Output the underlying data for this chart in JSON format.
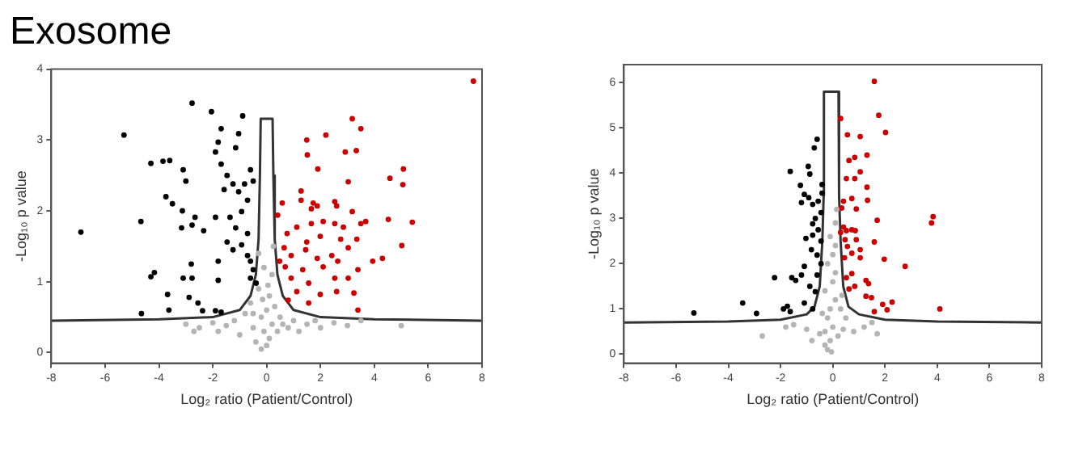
{
  "chart_data": [
    {
      "type": "scatter",
      "title": "Exosome",
      "xlabel": "Log₂ ratio (Patient/Control)",
      "ylabel": "-Log₁₀ p value",
      "xlim": [
        -8,
        8
      ],
      "xticks": [
        -8,
        -6,
        -4,
        -2,
        0,
        2,
        4,
        6,
        8
      ],
      "ylim": [
        -0.15,
        4
      ],
      "yticks": [
        0,
        1,
        2,
        3,
        4
      ],
      "grid": false,
      "legend": false,
      "marker": "circle",
      "series": [
        {
          "type": "scatter",
          "color": "#b4b4b4",
          "x": [
            -3,
            -2.5,
            -2,
            -1.8,
            -1.5,
            -1.2,
            -1,
            -0.8,
            -0.6,
            -0.5,
            -0.4,
            -0.3,
            -0.2,
            -0.2,
            -0.1,
            -0.1,
            0,
            0,
            0.1,
            0.1,
            0.2,
            0.2,
            0.3,
            0.4,
            0.5,
            0.6,
            0.8,
            1,
            1.2,
            1.5,
            2,
            2.5,
            3,
            3.5,
            5,
            -0.3,
            0.25,
            -0.15,
            0.05,
            -0.5,
            -2.7,
            1.8
          ],
          "values": [
            0.4,
            0.35,
            0.42,
            0.3,
            0.38,
            0.45,
            0.25,
            0.55,
            0.7,
            0.35,
            0.15,
            0.9,
            0.5,
            0.05,
            1.2,
            0.3,
            0.6,
            0.1,
            0.8,
            0.2,
            1.1,
            0.4,
            0.65,
            0.3,
            0.5,
            0.4,
            0.35,
            0.45,
            0.3,
            0.4,
            0.35,
            0.42,
            0.38,
            0.45,
            0.38,
            1.4,
            1.5,
            0.75,
            0.95,
            0.55,
            0.3,
            0.45
          ]
        },
        {
          "type": "scatter",
          "color": "#000000",
          "x": [
            -2.77,
            -5.3,
            -2.05,
            -6.9,
            -4.67,
            -4.65,
            -4.3,
            -3.85,
            -3.6,
            -3.74,
            -3.5,
            -3.1,
            -3.0,
            -3.13,
            -3.16,
            -2.77,
            -2.66,
            -2.34,
            -4.17,
            -4.3,
            -3.1,
            -3.68,
            -3.63,
            -2.8,
            -2.77,
            -2.88,
            -2.55,
            -2.38,
            -1.9,
            -1.69,
            -1.8,
            -1.8,
            -1.9,
            -1.9,
            -1.8,
            -1.69,
            -0.89,
            -1.15,
            -1.04,
            -1.58,
            -1.47,
            -1.25,
            -1.04,
            -0.82,
            -0.6,
            -0.5,
            -1.36,
            -1.15,
            -0.93,
            -0.71,
            -1.47,
            -1.25,
            -0.93,
            -0.71,
            -0.6,
            -0.5,
            -0.39,
            -0.6,
            -1.69,
            -0.71
          ],
          "values": [
            3.52,
            3.07,
            3.4,
            1.7,
            1.85,
            0.55,
            2.67,
            2.7,
            2.71,
            2.2,
            2.1,
            2.58,
            2.42,
            2.0,
            1.76,
            1.8,
            1.91,
            1.72,
            1.13,
            1.07,
            1.05,
            0.82,
            0.6,
            1.25,
            1.05,
            0.78,
            0.7,
            0.59,
            0.59,
            0.57,
            1.29,
            1.02,
            1.91,
            2.83,
            2.97,
            3.16,
            3.34,
            2.89,
            3.09,
            2.3,
            2.5,
            2.38,
            2.27,
            2.38,
            2.58,
            2.42,
            1.91,
            1.76,
            1.99,
            1.68,
            1.56,
            1.45,
            1.52,
            1.37,
            1.29,
            1.17,
            0.98,
            1.05,
            2.66,
            2.15
          ]
        },
        {
          "type": "scatter",
          "color": "#cc0000",
          "x": [
            7.68,
            3.18,
            3.5,
            1.49,
            2.2,
            1.51,
            2.92,
            3.33,
            1.9,
            3.03,
            4.58,
            5.08,
            5.06,
            1.28,
            1.28,
            1.73,
            1.88,
            1.66,
            2.53,
            2.6,
            3.18,
            0.58,
            0.41,
            1.12,
            1.66,
            2.1,
            2.53,
            2.85,
            3.5,
            3.68,
            4.52,
            5.41,
            0.76,
            1.49,
            1.99,
            2.75,
            3.35,
            0.65,
            0.91,
            1.45,
            1.88,
            2.42,
            3.03,
            5.02,
            0.48,
            0.69,
            1.34,
            2.1,
            2.64,
            3.94,
            4.3,
            3.39,
            0.91,
            1.56,
            2.53,
            3.03,
            1.12,
            1.99,
            2.6,
            3.24,
            0.8,
            1.56,
            3.39
          ],
          "values": [
            3.83,
            3.3,
            3.16,
            3.0,
            3.07,
            2.79,
            2.83,
            2.85,
            2.59,
            2.41,
            2.46,
            2.59,
            2.37,
            2.28,
            2.15,
            2.11,
            2.07,
            2.03,
            2.13,
            2.07,
            1.99,
            2.11,
            1.94,
            1.77,
            1.82,
            1.85,
            1.82,
            1.77,
            1.82,
            1.85,
            1.88,
            1.84,
            1.68,
            1.56,
            1.64,
            1.6,
            1.6,
            1.48,
            1.37,
            1.45,
            1.33,
            1.37,
            1.48,
            1.51,
            1.29,
            1.21,
            1.17,
            1.21,
            1.29,
            1.29,
            1.33,
            1.17,
            1.05,
            0.98,
            1.05,
            1.05,
            0.86,
            0.82,
            0.86,
            0.84,
            0.74,
            0.7,
            0.6
          ]
        },
        {
          "type": "line",
          "marker": "none",
          "color": "#333333",
          "x": [
            -8,
            -4,
            -2,
            -1,
            -0.6,
            -0.4,
            -0.3,
            -0.25,
            -0.22,
            0.22,
            0.25,
            0.3,
            0.4,
            0.6,
            1,
            2,
            4,
            8
          ],
          "values": [
            0.45,
            0.47,
            0.5,
            0.6,
            0.8,
            1.1,
            1.6,
            2.5,
            3.3,
            3.3,
            2.5,
            1.6,
            1.1,
            0.8,
            0.6,
            0.5,
            0.47,
            0.45
          ]
        }
      ]
    },
    {
      "type": "scatter",
      "xlabel": "Log₂ ratio (Patient/Control)",
      "ylabel": "-Log₁₀ p value",
      "xlim": [
        -8,
        8
      ],
      "xticks": [
        -8,
        -6,
        -4,
        -2,
        0,
        2,
        4,
        6,
        8
      ],
      "ylim": [
        -0.2,
        6.4
      ],
      "yticks": [
        0,
        1,
        2,
        3,
        4,
        5,
        6
      ],
      "grid": false,
      "legend": false,
      "marker": "circle",
      "series": [
        {
          "type": "scatter",
          "color": "#b4b4b4",
          "x": [
            -0.2,
            -0.1,
            -0.3,
            0,
            -0.2,
            -0.1,
            0.1,
            -0.3,
            0,
            0.1,
            -0.2,
            0,
            0.1,
            -0.1,
            0.1,
            0.15,
            -0.3,
            0.2,
            -0.5,
            0.4,
            -1,
            0.8,
            -1.5,
            1.2,
            -2.7,
            -1.8,
            1.5,
            1.7,
            -0.8,
            0.5,
            0.3,
            0.35,
            -0.4,
            -0.05
          ],
          "values": [
            0.1,
            0.3,
            0.5,
            0.6,
            0.8,
            1.0,
            1.2,
            1.4,
            1.6,
            1.8,
            2.0,
            2.2,
            2.4,
            2.6,
            2.9,
            3.2,
            0.2,
            0.4,
            0.45,
            0.55,
            0.55,
            0.5,
            0.65,
            0.6,
            0.4,
            0.6,
            0.7,
            0.45,
            0.3,
            0.8,
            1.0,
            1.3,
            0.9,
            0.05
          ]
        },
        {
          "type": "scatter",
          "color": "#000000",
          "x": [
            -5.32,
            -3.45,
            -2.92,
            -2.23,
            -1.89,
            -1.74,
            -1.63,
            -1.57,
            -1.42,
            -1.63,
            -1.24,
            -0.94,
            -0.6,
            -0.71,
            -0.88,
            -1.2,
            -1.09,
            -0.92,
            -0.77,
            -0.56,
            -0.45,
            -0.67,
            -0.77,
            -1.03,
            -0.77,
            -0.56,
            -0.45,
            -0.82,
            -0.6,
            -0.45,
            -1.09,
            -1.2,
            -0.88,
            -0.67,
            -0.6,
            -1.09,
            -0.77,
            -0.41,
            -0.41
          ],
          "values": [
            0.91,
            1.13,
            0.9,
            1.69,
            1.0,
            1.06,
            0.94,
            1.69,
            1.63,
            4.04,
            3.73,
            4.15,
            4.75,
            4.56,
            3.98,
            3.35,
            3.53,
            3.46,
            3.31,
            3.38,
            3.13,
            3.0,
            2.88,
            2.56,
            2.63,
            2.75,
            2.5,
            2.31,
            2.19,
            2.0,
            1.94,
            1.75,
            1.5,
            1.38,
            1.75,
            1.13,
            1.0,
            3.75,
            3.56
          ]
        },
        {
          "type": "scatter",
          "color": "#cc0000",
          "x": [
            1.59,
            1.76,
            2.02,
            0.3,
            0.56,
            1.05,
            1.31,
            0.84,
            0.62,
            1.05,
            0.52,
            0.84,
            1.31,
            0.73,
            1.33,
            0.41,
            0.34,
            0.9,
            1.7,
            3.84,
            3.78,
            0.41,
            0.52,
            0.73,
            0.3,
            0.86,
            0.47,
            0.9,
            0.56,
            1.59,
            1.05,
            0.73,
            0.45,
            1.97,
            1.05,
            2.77,
            0.73,
            0.52,
            1.27,
            0.84,
            1.37,
            1.27,
            1.48,
            0.62,
            1.91,
            2.27,
            4.1,
            2.08,
            1.59
          ],
          "values": [
            6.03,
            5.28,
            4.9,
            5.21,
            4.85,
            4.81,
            4.4,
            4.35,
            4.28,
            4.03,
            3.88,
            3.88,
            3.69,
            3.44,
            3.4,
            3.38,
            3.23,
            3.21,
            2.96,
            3.04,
            2.9,
            2.81,
            2.73,
            2.75,
            2.69,
            2.73,
            2.53,
            2.53,
            2.38,
            2.48,
            2.31,
            2.23,
            2.13,
            2.1,
            2.13,
            1.94,
            1.78,
            1.69,
            1.63,
            1.5,
            1.56,
            1.28,
            1.25,
            1.44,
            1.1,
            1.15,
            1.0,
            0.98,
            0.94
          ]
        },
        {
          "type": "line",
          "marker": "none",
          "color": "#333333",
          "x": [
            -8,
            -4,
            -2,
            -1,
            -0.7,
            -0.5,
            -0.4,
            -0.35,
            -0.34,
            0.22,
            0.24,
            0.3,
            0.4,
            0.6,
            1,
            2,
            4,
            8
          ],
          "values": [
            0.7,
            0.72,
            0.76,
            0.88,
            1.05,
            1.5,
            2.5,
            3.5,
            5.8,
            5.8,
            3.5,
            2.5,
            1.5,
            1.05,
            0.88,
            0.76,
            0.72,
            0.7
          ]
        }
      ]
    }
  ]
}
